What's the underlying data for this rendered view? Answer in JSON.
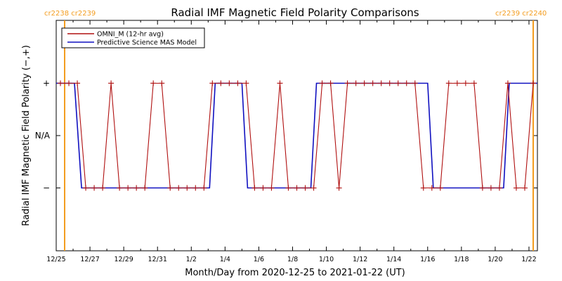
{
  "chart_data": {
    "type": "line",
    "title": "Radial IMF Magnetic Field Polarity Comparisons",
    "xlabel": "Month/Day from 2020-12-25 to 2021-01-22 (UT)",
    "ylabel": "Radial IMF Magnetic Field Polarity (−,+)",
    "x_start": "2020-12-25",
    "xlim": [
      "2020-12-25",
      "2021-01-22T12:00"
    ],
    "x_tick_labels": [
      "12/25",
      "12/27",
      "12/29",
      "12/31",
      "1/2",
      "1/4",
      "1/6",
      "1/8",
      "1/10",
      "1/12",
      "1/14",
      "1/16",
      "1/18",
      "1/20",
      "1/22"
    ],
    "y_tick_labels": [
      "+",
      "N/A",
      "−"
    ],
    "y_tick_values": [
      1,
      0,
      -1
    ],
    "ylim": [
      -2.2,
      2.2
    ],
    "legend": {
      "placement": "top-left"
    },
    "carrington_rotations": [
      {
        "labels": [
          "cr2238",
          "cr2239"
        ],
        "date": "2020-12-25T12:00",
        "color": "#f39c1e",
        "label_side": "left"
      },
      {
        "labels": [
          "cr2239",
          "cr2240"
        ],
        "date": "2021-01-22T06:00",
        "color": "#f39c1e",
        "label_side": "right"
      }
    ],
    "series": [
      {
        "name": "OMNI_M (12-hr avg)",
        "color": "#b01010",
        "marker": "plus",
        "x": [
          "2020-12-25T06:00",
          "2020-12-25T18:00",
          "2020-12-26T06:00",
          "2020-12-26T18:00",
          "2020-12-27T06:00",
          "2020-12-27T18:00",
          "2020-12-28T06:00",
          "2020-12-28T18:00",
          "2020-12-29T06:00",
          "2020-12-29T18:00",
          "2020-12-30T06:00",
          "2020-12-30T18:00",
          "2020-12-31T06:00",
          "2020-12-31T18:00",
          "2021-01-01T06:00",
          "2021-01-01T18:00",
          "2021-01-02T06:00",
          "2021-01-02T18:00",
          "2021-01-03T06:00",
          "2021-01-03T18:00",
          "2021-01-04T06:00",
          "2021-01-04T18:00",
          "2021-01-05T06:00",
          "2021-01-05T18:00",
          "2021-01-06T06:00",
          "2021-01-06T18:00",
          "2021-01-07T06:00",
          "2021-01-07T18:00",
          "2021-01-08T06:00",
          "2021-01-08T18:00",
          "2021-01-09T06:00",
          "2021-01-09T18:00",
          "2021-01-10T06:00",
          "2021-01-10T18:00",
          "2021-01-11T06:00",
          "2021-01-11T18:00",
          "2021-01-12T06:00",
          "2021-01-12T18:00",
          "2021-01-13T06:00",
          "2021-01-13T18:00",
          "2021-01-14T06:00",
          "2021-01-14T18:00",
          "2021-01-15T06:00",
          "2021-01-15T18:00",
          "2021-01-16T06:00",
          "2021-01-16T18:00",
          "2021-01-17T06:00",
          "2021-01-17T18:00",
          "2021-01-18T06:00",
          "2021-01-18T18:00",
          "2021-01-19T06:00",
          "2021-01-19T18:00",
          "2021-01-20T06:00",
          "2021-01-20T18:00",
          "2021-01-21T06:00",
          "2021-01-21T18:00",
          "2021-01-22T06:00"
        ],
        "y": [
          1,
          1,
          1,
          -1,
          -1,
          -1,
          1,
          -1,
          -1,
          -1,
          -1,
          1,
          1,
          -1,
          -1,
          -1,
          -1,
          -1,
          1,
          1,
          1,
          1,
          1,
          -1,
          -1,
          -1,
          1,
          -1,
          -1,
          -1,
          -1,
          1,
          1,
          -1,
          1,
          1,
          1,
          1,
          1,
          1,
          1,
          1,
          1,
          -1,
          -1,
          -1,
          1,
          1,
          1,
          1,
          -1,
          -1,
          -1,
          1,
          -1,
          -1,
          1
        ]
      },
      {
        "name": "Predictive Science MAS Model",
        "color": "#1010c0",
        "marker": "none",
        "step_points": [
          [
            "2020-12-25",
            1
          ],
          [
            "2020-12-26T02:00",
            1
          ],
          [
            "2020-12-26T12:00",
            -1
          ],
          [
            "2021-01-03T02:00",
            -1
          ],
          [
            "2021-01-03T10:00",
            1
          ],
          [
            "2021-01-05T00:00",
            1
          ],
          [
            "2021-01-05T08:00",
            -1
          ],
          [
            "2021-01-09T02:00",
            -1
          ],
          [
            "2021-01-09T10:00",
            1
          ],
          [
            "2021-01-16T00:00",
            1
          ],
          [
            "2021-01-16T08:00",
            -1
          ],
          [
            "2021-01-20T12:00",
            -1
          ],
          [
            "2021-01-20T20:00",
            1
          ],
          [
            "2021-01-22T12:00",
            1
          ]
        ]
      }
    ]
  }
}
